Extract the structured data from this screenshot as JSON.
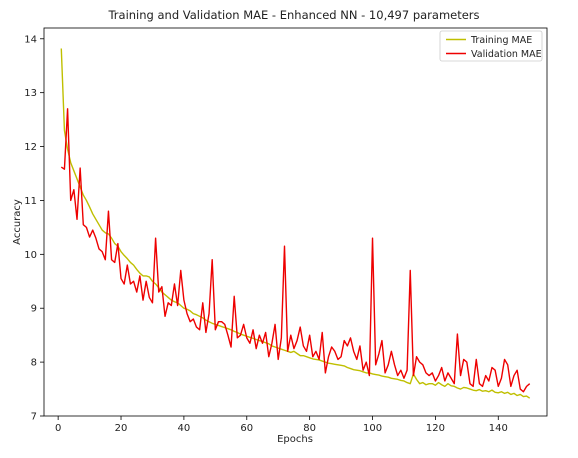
{
  "chart_data": {
    "type": "line",
    "title": "Training and Validation MAE - Enhanced NN - 10,497 parameters",
    "xlabel": "Epochs",
    "ylabel": "Accuracy",
    "xlim": [
      -4.5,
      155.5
    ],
    "ylim": [
      7.0,
      14.2
    ],
    "xticks": [
      0,
      20,
      40,
      60,
      80,
      100,
      120,
      140
    ],
    "yticks": [
      7,
      8,
      9,
      10,
      11,
      12,
      13,
      14
    ],
    "grid": false,
    "legend": "top-right",
    "series": [
      {
        "name": "Training MAE",
        "color": "#bfbf00",
        "points": [
          [
            1,
            13.82
          ],
          [
            2,
            12.3
          ],
          [
            3,
            11.95
          ],
          [
            4,
            11.7
          ],
          [
            5,
            11.55
          ],
          [
            6,
            11.4
          ],
          [
            7,
            11.25
          ],
          [
            8,
            11.1
          ],
          [
            9,
            11.0
          ],
          [
            10,
            10.88
          ],
          [
            11,
            10.75
          ],
          [
            12,
            10.65
          ],
          [
            13,
            10.55
          ],
          [
            14,
            10.45
          ],
          [
            15,
            10.4
          ],
          [
            16,
            10.38
          ],
          [
            17,
            10.3
          ],
          [
            18,
            10.2
          ],
          [
            19,
            10.15
          ],
          [
            20,
            10.05
          ],
          [
            21,
            9.98
          ],
          [
            22,
            9.92
          ],
          [
            23,
            9.85
          ],
          [
            24,
            9.8
          ],
          [
            25,
            9.72
          ],
          [
            26,
            9.65
          ],
          [
            27,
            9.6
          ],
          [
            28,
            9.6
          ],
          [
            29,
            9.58
          ],
          [
            30,
            9.5
          ],
          [
            31,
            9.45
          ],
          [
            32,
            9.38
          ],
          [
            33,
            9.3
          ],
          [
            34,
            9.25
          ],
          [
            35,
            9.2
          ],
          [
            36,
            9.15
          ],
          [
            37,
            9.12
          ],
          [
            38,
            9.1
          ],
          [
            39,
            9.05
          ],
          [
            40,
            9.0
          ],
          [
            41,
            8.98
          ],
          [
            42,
            8.95
          ],
          [
            43,
            8.9
          ],
          [
            44,
            8.88
          ],
          [
            45,
            8.85
          ],
          [
            46,
            8.82
          ],
          [
            47,
            8.78
          ],
          [
            48,
            8.75
          ],
          [
            49,
            8.72
          ],
          [
            50,
            8.7
          ],
          [
            51,
            8.68
          ],
          [
            52,
            8.66
          ],
          [
            53,
            8.64
          ],
          [
            54,
            8.62
          ],
          [
            55,
            8.6
          ],
          [
            56,
            8.57
          ],
          [
            57,
            8.55
          ],
          [
            58,
            8.52
          ],
          [
            59,
            8.5
          ],
          [
            60,
            8.48
          ],
          [
            61,
            8.46
          ],
          [
            62,
            8.44
          ],
          [
            63,
            8.42
          ],
          [
            64,
            8.4
          ],
          [
            65,
            8.38
          ],
          [
            66,
            8.36
          ],
          [
            67,
            8.34
          ],
          [
            68,
            8.3
          ],
          [
            69,
            8.28
          ],
          [
            70,
            8.26
          ],
          [
            71,
            8.24
          ],
          [
            72,
            8.22
          ],
          [
            73,
            8.2
          ],
          [
            74,
            8.18
          ],
          [
            75,
            8.2
          ],
          [
            76,
            8.16
          ],
          [
            77,
            8.12
          ],
          [
            78,
            8.12
          ],
          [
            79,
            8.1
          ],
          [
            80,
            8.08
          ],
          [
            81,
            8.06
          ],
          [
            82,
            8.05
          ],
          [
            83,
            8.04
          ],
          [
            84,
            8.02
          ],
          [
            85,
            8.0
          ],
          [
            86,
            7.98
          ],
          [
            87,
            7.97
          ],
          [
            88,
            7.96
          ],
          [
            89,
            7.95
          ],
          [
            90,
            7.94
          ],
          [
            91,
            7.93
          ],
          [
            92,
            7.9
          ],
          [
            93,
            7.88
          ],
          [
            94,
            7.86
          ],
          [
            95,
            7.85
          ],
          [
            96,
            7.84
          ],
          [
            97,
            7.82
          ],
          [
            98,
            7.8
          ],
          [
            99,
            7.8
          ],
          [
            100,
            7.78
          ],
          [
            101,
            7.77
          ],
          [
            102,
            7.76
          ],
          [
            103,
            7.74
          ],
          [
            104,
            7.73
          ],
          [
            105,
            7.72
          ],
          [
            106,
            7.7
          ],
          [
            107,
            7.69
          ],
          [
            108,
            7.68
          ],
          [
            109,
            7.66
          ],
          [
            110,
            7.65
          ],
          [
            111,
            7.62
          ],
          [
            112,
            7.6
          ],
          [
            113,
            7.78
          ],
          [
            114,
            7.68
          ],
          [
            115,
            7.6
          ],
          [
            116,
            7.62
          ],
          [
            117,
            7.58
          ],
          [
            118,
            7.6
          ],
          [
            119,
            7.6
          ],
          [
            120,
            7.57
          ],
          [
            121,
            7.62
          ],
          [
            122,
            7.58
          ],
          [
            123,
            7.55
          ],
          [
            124,
            7.6
          ],
          [
            125,
            7.56
          ],
          [
            126,
            7.55
          ],
          [
            127,
            7.52
          ],
          [
            128,
            7.5
          ],
          [
            129,
            7.53
          ],
          [
            130,
            7.52
          ],
          [
            131,
            7.5
          ],
          [
            132,
            7.48
          ],
          [
            133,
            7.47
          ],
          [
            134,
            7.49
          ],
          [
            135,
            7.46
          ],
          [
            136,
            7.47
          ],
          [
            137,
            7.45
          ],
          [
            138,
            7.48
          ],
          [
            139,
            7.44
          ],
          [
            140,
            7.43
          ],
          [
            141,
            7.45
          ],
          [
            142,
            7.42
          ],
          [
            143,
            7.44
          ],
          [
            144,
            7.4
          ],
          [
            145,
            7.42
          ],
          [
            146,
            7.38
          ],
          [
            147,
            7.4
          ],
          [
            148,
            7.36
          ],
          [
            149,
            7.37
          ],
          [
            150,
            7.33
          ]
        ]
      },
      {
        "name": "Validation MAE",
        "color": "#ee0000",
        "points": [
          [
            1,
            11.62
          ],
          [
            2,
            11.58
          ],
          [
            3,
            12.7
          ],
          [
            4,
            11.0
          ],
          [
            5,
            11.2
          ],
          [
            6,
            10.65
          ],
          [
            7,
            11.6
          ],
          [
            8,
            10.55
          ],
          [
            9,
            10.5
          ],
          [
            10,
            10.32
          ],
          [
            11,
            10.45
          ],
          [
            12,
            10.3
          ],
          [
            13,
            10.1
          ],
          [
            14,
            10.05
          ],
          [
            15,
            9.9
          ],
          [
            16,
            10.8
          ],
          [
            17,
            9.9
          ],
          [
            18,
            9.85
          ],
          [
            19,
            10.2
          ],
          [
            20,
            9.55
          ],
          [
            21,
            9.45
          ],
          [
            22,
            9.8
          ],
          [
            23,
            9.45
          ],
          [
            24,
            9.5
          ],
          [
            25,
            9.3
          ],
          [
            26,
            9.6
          ],
          [
            27,
            9.15
          ],
          [
            28,
            9.5
          ],
          [
            29,
            9.2
          ],
          [
            30,
            9.1
          ],
          [
            31,
            10.3
          ],
          [
            32,
            9.3
          ],
          [
            33,
            9.4
          ],
          [
            34,
            8.85
          ],
          [
            35,
            9.1
          ],
          [
            36,
            9.05
          ],
          [
            37,
            9.45
          ],
          [
            38,
            9.05
          ],
          [
            39,
            9.7
          ],
          [
            40,
            9.15
          ],
          [
            41,
            8.9
          ],
          [
            42,
            8.75
          ],
          [
            43,
            8.8
          ],
          [
            44,
            8.65
          ],
          [
            45,
            8.6
          ],
          [
            46,
            9.1
          ],
          [
            47,
            8.55
          ],
          [
            48,
            8.9
          ],
          [
            49,
            9.9
          ],
          [
            50,
            8.6
          ],
          [
            51,
            8.75
          ],
          [
            52,
            8.75
          ],
          [
            53,
            8.7
          ],
          [
            54,
            8.5
          ],
          [
            55,
            8.28
          ],
          [
            56,
            9.22
          ],
          [
            57,
            8.45
          ],
          [
            58,
            8.5
          ],
          [
            59,
            8.7
          ],
          [
            60,
            8.45
          ],
          [
            61,
            8.35
          ],
          [
            62,
            8.6
          ],
          [
            63,
            8.25
          ],
          [
            64,
            8.5
          ],
          [
            65,
            8.35
          ],
          [
            66,
            8.55
          ],
          [
            67,
            8.1
          ],
          [
            68,
            8.35
          ],
          [
            69,
            8.7
          ],
          [
            70,
            8.05
          ],
          [
            71,
            8.45
          ],
          [
            72,
            10.15
          ],
          [
            73,
            8.2
          ],
          [
            74,
            8.5
          ],
          [
            75,
            8.25
          ],
          [
            76,
            8.4
          ],
          [
            77,
            8.65
          ],
          [
            78,
            8.3
          ],
          [
            79,
            8.2
          ],
          [
            80,
            8.5
          ],
          [
            81,
            8.1
          ],
          [
            82,
            8.2
          ],
          [
            83,
            8.05
          ],
          [
            84,
            8.55
          ],
          [
            85,
            7.8
          ],
          [
            86,
            8.1
          ],
          [
            87,
            8.28
          ],
          [
            88,
            8.2
          ],
          [
            89,
            8.05
          ],
          [
            90,
            8.1
          ],
          [
            91,
            8.4
          ],
          [
            92,
            8.3
          ],
          [
            93,
            8.45
          ],
          [
            94,
            8.2
          ],
          [
            95,
            8.05
          ],
          [
            96,
            8.3
          ],
          [
            97,
            7.85
          ],
          [
            98,
            8.0
          ],
          [
            99,
            7.75
          ],
          [
            100,
            10.3
          ],
          [
            101,
            7.95
          ],
          [
            102,
            8.15
          ],
          [
            103,
            8.4
          ],
          [
            104,
            7.8
          ],
          [
            105,
            7.95
          ],
          [
            106,
            8.2
          ],
          [
            107,
            7.95
          ],
          [
            108,
            7.75
          ],
          [
            109,
            7.85
          ],
          [
            110,
            7.7
          ],
          [
            111,
            7.85
          ],
          [
            112,
            9.7
          ],
          [
            113,
            7.75
          ],
          [
            114,
            8.1
          ],
          [
            115,
            8.0
          ],
          [
            116,
            7.95
          ],
          [
            117,
            7.8
          ],
          [
            118,
            7.75
          ],
          [
            119,
            7.8
          ],
          [
            120,
            7.65
          ],
          [
            121,
            7.75
          ],
          [
            122,
            7.9
          ],
          [
            123,
            7.65
          ],
          [
            124,
            7.8
          ],
          [
            125,
            7.7
          ],
          [
            126,
            7.6
          ],
          [
            127,
            8.52
          ],
          [
            128,
            7.75
          ],
          [
            129,
            8.05
          ],
          [
            130,
            8.0
          ],
          [
            131,
            7.6
          ],
          [
            132,
            7.55
          ],
          [
            133,
            8.05
          ],
          [
            134,
            7.6
          ],
          [
            135,
            7.55
          ],
          [
            136,
            7.75
          ],
          [
            137,
            7.65
          ],
          [
            138,
            7.9
          ],
          [
            139,
            7.85
          ],
          [
            140,
            7.55
          ],
          [
            141,
            7.7
          ],
          [
            142,
            8.05
          ],
          [
            143,
            7.95
          ],
          [
            144,
            7.55
          ],
          [
            145,
            7.75
          ],
          [
            146,
            7.85
          ],
          [
            147,
            7.5
          ],
          [
            148,
            7.45
          ],
          [
            149,
            7.55
          ],
          [
            150,
            7.6
          ]
        ]
      }
    ]
  }
}
